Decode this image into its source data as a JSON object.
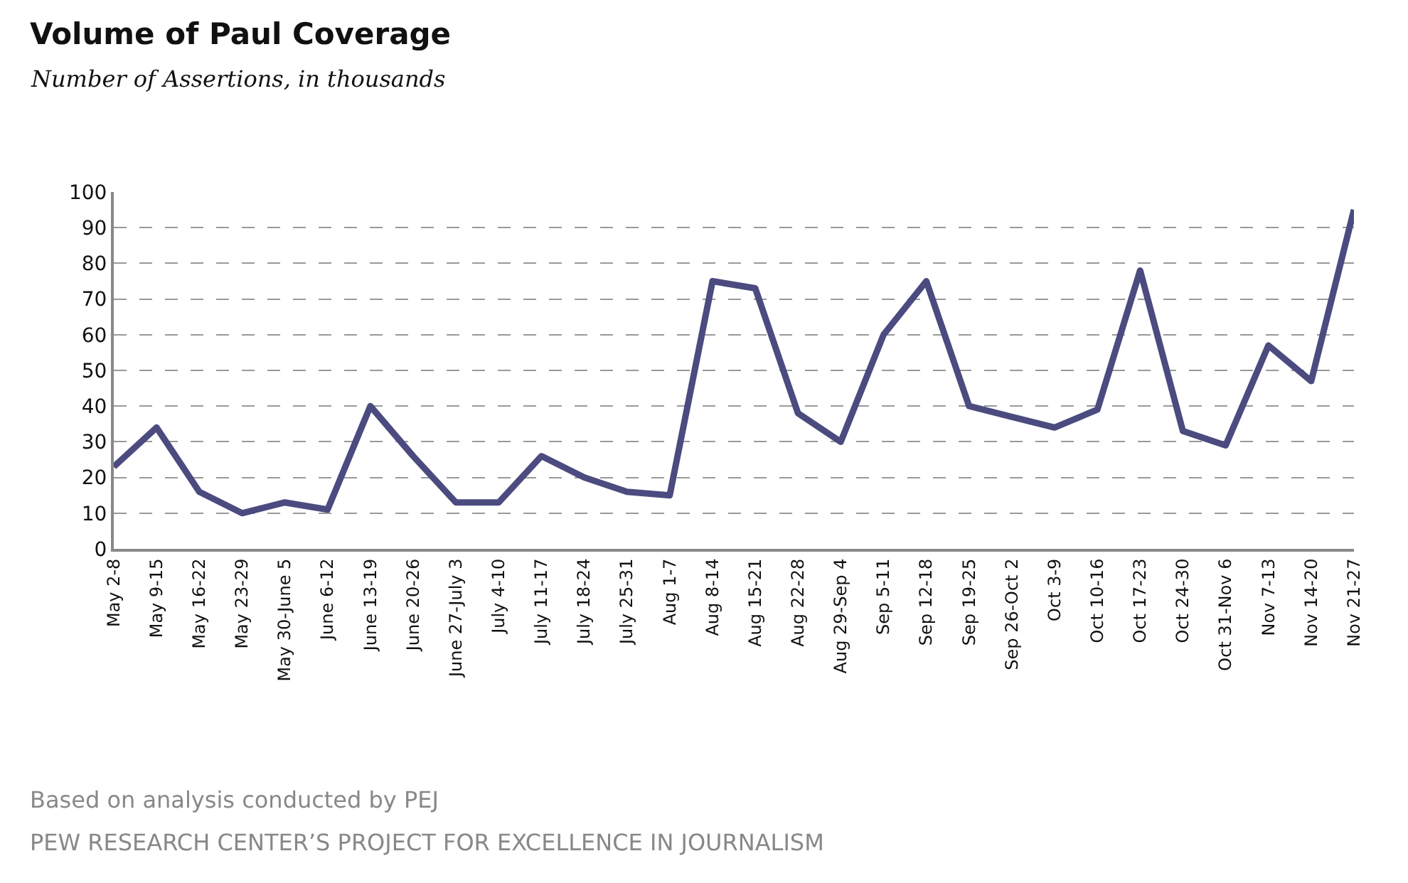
{
  "chart_data": {
    "type": "line",
    "title": "Volume of Paul Coverage",
    "subtitle": "Number of Assertions, in thousands",
    "categories": [
      "May 2-8",
      "May 9-15",
      "May 16-22",
      "May 23-29",
      "May 30-June 5",
      "June 6-12",
      "June 13-19",
      "June 20-26",
      "June 27-July 3",
      "July 4-10",
      "July 11-17",
      "July 18-24",
      "July 25-31",
      "Aug 1-7",
      "Aug 8-14",
      "Aug 15-21",
      "Aug 22-28",
      "Aug 29-Sep 4",
      "Sep 5-11",
      "Sep 12-18",
      "Sep 19-25",
      "Sep 26-Oct 2",
      "Oct 3-9",
      "Oct 10-16",
      "Oct 17-23",
      "Oct 24-30",
      "Oct 31-Nov 6",
      "Nov 7-13",
      "Nov 14-20",
      "Nov 21-27"
    ],
    "series": [
      {
        "color": "#4b4b80",
        "values": [
          23,
          34,
          16,
          10,
          13,
          11,
          40,
          26,
          13,
          13,
          26,
          20,
          16,
          15,
          75,
          73,
          38,
          30,
          60,
          75,
          40,
          37,
          34,
          39,
          78,
          33,
          29,
          57,
          47,
          95
        ]
      }
    ],
    "ylim": [
      0,
      100
    ],
    "yticks": [
      0,
      10,
      20,
      30,
      40,
      50,
      60,
      70,
      80,
      90,
      100
    ],
    "grid": "y",
    "legend": false,
    "marker": "none",
    "line_style": "solid",
    "annotations": [
      "Based on analysis conducted by PEJ",
      "PEW RESEARCH CENTER’S PROJECT FOR EXCELLENCE IN JOURNALISM"
    ]
  }
}
